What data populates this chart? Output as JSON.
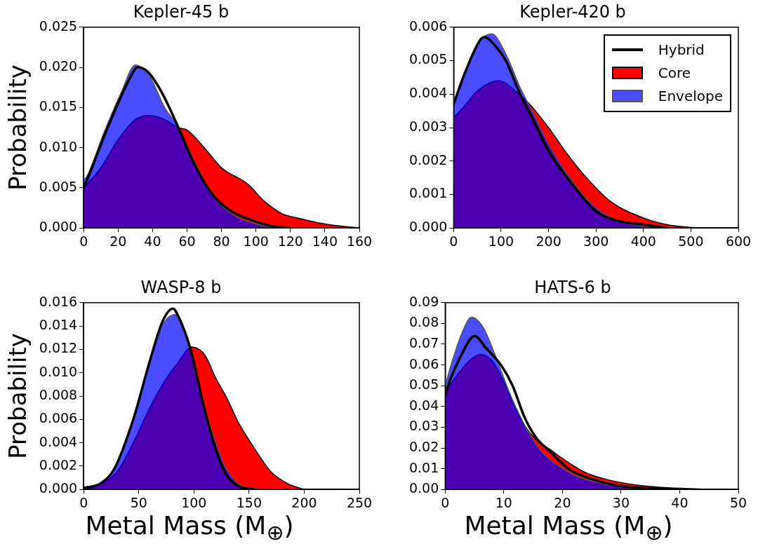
{
  "chart_data": [
    {
      "type": "area",
      "title": "Kepler-45 b",
      "ylabel": "Probability",
      "xlim": [
        0,
        160
      ],
      "ylim": [
        0,
        0.025
      ],
      "xticks": [
        0,
        20,
        40,
        60,
        80,
        100,
        120,
        140,
        160
      ],
      "yticks": [
        {
          "value": 0,
          "label": "0.000"
        },
        {
          "value": 0.005,
          "label": "0.005"
        },
        {
          "value": 0.01,
          "label": "0.010"
        },
        {
          "value": 0.015,
          "label": "0.015"
        },
        {
          "value": 0.02,
          "label": "0.020"
        },
        {
          "value": 0.025,
          "label": "0.025"
        }
      ],
      "grid": false,
      "legend": false,
      "marker": "none",
      "series": [
        {
          "color": "#ff0000",
          "x": [
            0,
            10,
            20,
            30,
            38,
            47,
            55,
            60,
            70,
            80,
            95,
            105,
            115,
            125,
            140,
            160
          ],
          "values": [
            0.005,
            0.0075,
            0.011,
            0.0135,
            0.014,
            0.0135,
            0.0125,
            0.0122,
            0.01,
            0.0075,
            0.0055,
            0.0033,
            0.0018,
            0.0012,
            0.0005,
            0
          ]
        },
        {
          "color": "#0000ff",
          "x": [
            0,
            2,
            12,
            22,
            30,
            38,
            47,
            55,
            65,
            75,
            88,
            100,
            110
          ],
          "values": [
            0.006,
            0.0065,
            0.012,
            0.017,
            0.0203,
            0.019,
            0.015,
            0.0125,
            0.008,
            0.004,
            0.0015,
            0.0005,
            0
          ]
        },
        {
          "type": "line",
          "color": "#000000",
          "x": [
            0,
            3,
            13,
            22,
            29,
            31,
            37,
            45,
            55,
            63,
            72,
            80,
            88,
            100,
            110,
            120
          ],
          "values": [
            0.005,
            0.0065,
            0.012,
            0.0165,
            0.0195,
            0.02,
            0.0195,
            0.017,
            0.0125,
            0.0085,
            0.005,
            0.003,
            0.0018,
            0.0008,
            0.0002,
            0
          ]
        }
      ]
    },
    {
      "type": "area",
      "title": "Kepler-420 b",
      "xlim": [
        0,
        600
      ],
      "ylim": [
        0,
        0.006
      ],
      "xticks": [
        0,
        100,
        200,
        300,
        400,
        500,
        600
      ],
      "yticks": [
        {
          "value": 0,
          "label": "0.000"
        },
        {
          "value": 0.001,
          "label": "0.001"
        },
        {
          "value": 0.002,
          "label": "0.002"
        },
        {
          "value": 0.003,
          "label": "0.003"
        },
        {
          "value": 0.004,
          "label": "0.004"
        },
        {
          "value": 0.005,
          "label": "0.005"
        },
        {
          "value": 0.006,
          "label": "0.006"
        }
      ],
      "grid": false,
      "legend": "top right",
      "marker": "none",
      "series": [
        {
          "name": "Core",
          "color": "#ff0000",
          "x": [
            0,
            20,
            50,
            95,
            130,
            160,
            200,
            240,
            280,
            330,
            400,
            450,
            510
          ],
          "values": [
            0.0033,
            0.0036,
            0.0041,
            0.0044,
            0.0041,
            0.0037,
            0.003,
            0.0022,
            0.0015,
            0.0008,
            0.0003,
            0.0001,
            0
          ]
        },
        {
          "name": "Envelope",
          "color": "#0000ff",
          "x": [
            0,
            20,
            50,
            80,
            110,
            140,
            165,
            200,
            250,
            300,
            350,
            420
          ],
          "values": [
            0.0037,
            0.0045,
            0.0055,
            0.0058,
            0.0052,
            0.0042,
            0.0035,
            0.0025,
            0.0014,
            0.0006,
            0.0002,
            0
          ]
        },
        {
          "name": "Hybrid",
          "type": "line",
          "color": "#000000",
          "x": [
            0,
            20,
            55,
            65,
            90,
            110,
            140,
            165,
            200,
            250,
            300,
            350,
            400,
            450
          ],
          "values": [
            0.0037,
            0.0045,
            0.0056,
            0.0057,
            0.0054,
            0.005,
            0.004,
            0.0033,
            0.0023,
            0.0013,
            0.0005,
            0.0002,
            0.0001,
            0
          ]
        }
      ]
    },
    {
      "type": "area",
      "title": "WASP-8 b",
      "ylabel": "Probability",
      "xlabel": "Metal Mass (M$_{⊕}$)",
      "xlim": [
        0,
        250
      ],
      "ylim": [
        0,
        0.016
      ],
      "xticks": [
        0,
        50,
        100,
        150,
        200,
        250
      ],
      "yticks": [
        {
          "value": 0,
          "label": "0.000"
        },
        {
          "value": 0.002,
          "label": "0.002"
        },
        {
          "value": 0.004,
          "label": "0.004"
        },
        {
          "value": 0.006,
          "label": "0.006"
        },
        {
          "value": 0.008,
          "label": "0.008"
        },
        {
          "value": 0.01,
          "label": "0.010"
        },
        {
          "value": 0.012,
          "label": "0.012"
        },
        {
          "value": 0.014,
          "label": "0.014"
        },
        {
          "value": 0.016,
          "label": "0.016"
        }
      ],
      "grid": false,
      "legend": false,
      "marker": "none",
      "series": [
        {
          "color": "#ff0000",
          "x": [
            0,
            15,
            30,
            45,
            60,
            75,
            85,
            98,
            110,
            120,
            130,
            140,
            155,
            170,
            185,
            200
          ],
          "values": [
            0.0002,
            0.0005,
            0.0015,
            0.004,
            0.007,
            0.0095,
            0.0108,
            0.0122,
            0.0115,
            0.0095,
            0.0078,
            0.0058,
            0.0035,
            0.0015,
            0.0005,
            0
          ]
        },
        {
          "color": "#0000ff",
          "x": [
            0,
            15,
            30,
            45,
            60,
            72,
            84,
            95,
            107,
            118,
            128,
            140,
            160
          ],
          "values": [
            0.0001,
            0.0005,
            0.002,
            0.006,
            0.011,
            0.0142,
            0.015,
            0.0125,
            0.008,
            0.0045,
            0.002,
            0.0005,
            0
          ]
        },
        {
          "type": "line",
          "color": "#000000",
          "x": [
            0,
            15,
            28,
            45,
            60,
            72,
            81,
            86,
            97,
            108,
            118,
            128,
            140,
            155
          ],
          "values": [
            0.0001,
            0.0005,
            0.0018,
            0.006,
            0.011,
            0.0145,
            0.0155,
            0.0148,
            0.012,
            0.0075,
            0.004,
            0.0015,
            0.0003,
            0
          ]
        }
      ]
    },
    {
      "type": "area",
      "title": "HATS-6 b",
      "xlabel": "Metal Mass (M$_{⊕}$)",
      "xlim": [
        0,
        50
      ],
      "ylim": [
        0,
        0.09
      ],
      "xticks": [
        0,
        10,
        20,
        30,
        40,
        50
      ],
      "yticks": [
        {
          "value": 0,
          "label": "0.00"
        },
        {
          "value": 0.01,
          "label": "0.01"
        },
        {
          "value": 0.02,
          "label": "0.02"
        },
        {
          "value": 0.03,
          "label": "0.03"
        },
        {
          "value": 0.04,
          "label": "0.04"
        },
        {
          "value": 0.05,
          "label": "0.05"
        },
        {
          "value": 0.06,
          "label": "0.06"
        },
        {
          "value": 0.07,
          "label": "0.07"
        },
        {
          "value": 0.08,
          "label": "0.08"
        },
        {
          "value": 0.09,
          "label": "0.09"
        }
      ],
      "grid": false,
      "legend": false,
      "marker": "none",
      "series": [
        {
          "color": "#ff0000",
          "x": [
            0,
            2,
            4.5,
            6,
            8,
            10,
            11.5,
            13.5,
            15.5,
            18,
            21,
            24,
            28,
            33,
            38,
            46
          ],
          "values": [
            0.047,
            0.055,
            0.063,
            0.065,
            0.062,
            0.052,
            0.042,
            0.031,
            0.024,
            0.019,
            0.013,
            0.008,
            0.0045,
            0.002,
            0.0008,
            0
          ]
        },
        {
          "color": "#0000ff",
          "x": [
            0,
            1,
            2.8,
            4.5,
            6.5,
            8.5,
            10.5,
            12,
            14.5,
            16.5,
            19,
            22,
            25,
            28,
            32,
            36
          ],
          "values": [
            0.05,
            0.06,
            0.075,
            0.083,
            0.078,
            0.065,
            0.05,
            0.04,
            0.026,
            0.018,
            0.012,
            0.007,
            0.004,
            0.002,
            0.0005,
            0
          ]
        },
        {
          "type": "line",
          "color": "#000000",
          "x": [
            0,
            0.5,
            2.8,
            5,
            7,
            9.5,
            11.5,
            13.5,
            15.5,
            18,
            21,
            25,
            29,
            33,
            40
          ],
          "values": [
            0.045,
            0.05,
            0.065,
            0.074,
            0.068,
            0.06,
            0.05,
            0.035,
            0.025,
            0.018,
            0.01,
            0.005,
            0.002,
            0.0008,
            0
          ]
        }
      ]
    }
  ]
}
